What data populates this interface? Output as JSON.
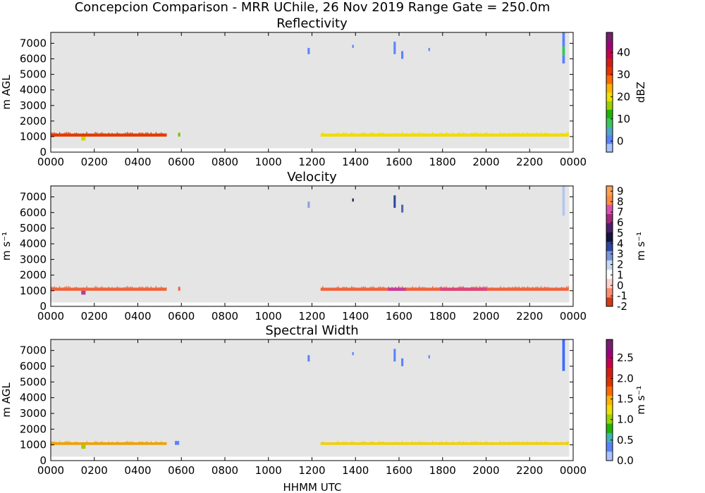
{
  "figure": {
    "title": "Concepcion Comparison - MRR UChile, 26 Nov 2019 Range Gate = 250.0m",
    "xlabel": "HHMM UTC"
  },
  "chart_data": [
    {
      "type": "heatmap",
      "title": "Reflectivity",
      "ylabel": "m AGL",
      "cbar_label": "dBZ",
      "cbar_range": [
        -5,
        49
      ],
      "cbar_ticks": [
        "0",
        "10",
        "20",
        "30",
        "40"
      ],
      "cbar_tick_values": [
        0,
        10,
        20,
        30,
        40
      ],
      "cbar_colors": [
        "#a8c4ff",
        "#5a82ff",
        "#4fa8c8",
        "#3cc85a",
        "#1fb400",
        "#9ad200",
        "#f0e000",
        "#ffb400",
        "#ff6a00",
        "#e83200",
        "#d21e14",
        "#c8004b",
        "#a0007a",
        "#781e6e"
      ],
      "xlim": [
        0,
        24
      ],
      "ylim": [
        0,
        7700
      ],
      "x_ticks": [
        "0000",
        "0200",
        "0400",
        "0600",
        "0800",
        "1000",
        "1200",
        "1400",
        "1600",
        "1800",
        "2000",
        "2200",
        "0000"
      ],
      "x_tick_values": [
        0,
        2,
        4,
        6,
        8,
        10,
        12,
        14,
        16,
        18,
        20,
        22,
        24
      ],
      "y_ticks": [
        "0",
        "1000",
        "2000",
        "3000",
        "4000",
        "5000",
        "6000",
        "7000"
      ],
      "y_tick_values": [
        0,
        1000,
        2000,
        3000,
        4000,
        5000,
        6000,
        7000
      ],
      "background": "#e5e5e5",
      "coverage": [
        [
          0,
          23.82,
          250,
          7700
        ]
      ],
      "segments": [
        {
          "x": [
            0.0,
            5.3
          ],
          "y": [
            1000,
            1300
          ],
          "color": "#e03c00"
        },
        {
          "x": [
            1.4,
            1.6
          ],
          "y": [
            750,
            1000
          ],
          "color": "#c8dc00"
        },
        {
          "x": [
            5.85,
            5.95
          ],
          "y": [
            1000,
            1250
          ],
          "color": "#6cc800"
        },
        {
          "x": [
            12.4,
            23.8
          ],
          "y": [
            1000,
            1300
          ],
          "color": "#f0dc00"
        },
        {
          "x": [
            11.8,
            11.9
          ],
          "y": [
            6300,
            6700
          ],
          "color": "#5a82ff"
        },
        {
          "x": [
            13.85,
            13.92
          ],
          "y": [
            6700,
            6900
          ],
          "color": "#5a82ff"
        },
        {
          "x": [
            15.75,
            15.85
          ],
          "y": [
            6300,
            7100
          ],
          "color": "#5a82ff"
        },
        {
          "x": [
            16.1,
            16.2
          ],
          "y": [
            6000,
            6500
          ],
          "color": "#5a82ff"
        },
        {
          "x": [
            17.35,
            17.42
          ],
          "y": [
            6500,
            6700
          ],
          "color": "#5a82ff"
        },
        {
          "x": [
            23.5,
            23.62
          ],
          "y": [
            5700,
            7700
          ],
          "color": "#5a82ff"
        },
        {
          "x": [
            23.5,
            23.62
          ],
          "y": [
            6200,
            6800
          ],
          "color": "#3cc85a"
        }
      ]
    },
    {
      "type": "heatmap",
      "title": "Velocity",
      "ylabel": "m s⁻¹",
      "cbar_label": "m s⁻¹",
      "cbar_range": [
        -2,
        9.5
      ],
      "cbar_ticks": [
        "-2",
        "-1",
        "0",
        "1",
        "2",
        "3",
        "4",
        "5",
        "6",
        "7",
        "8",
        "9"
      ],
      "cbar_tick_values": [
        -2,
        -1,
        0,
        1,
        2,
        3,
        4,
        5,
        6,
        7,
        8,
        9
      ],
      "cbar_colors": [
        "#d23c14",
        "#ff8c6e",
        "#ffd2c8",
        "#ffffff",
        "#c8d7f5",
        "#7896dc",
        "#2d46a0",
        "#14143c",
        "#4b1e6e",
        "#a0287d",
        "#dc50b4",
        "#ff8c3c",
        "#ffa050"
      ],
      "xlim": [
        0,
        24
      ],
      "ylim": [
        0,
        7700
      ],
      "x_ticks": [
        "0000",
        "0200",
        "0400",
        "0600",
        "0800",
        "1000",
        "1200",
        "1400",
        "1600",
        "1800",
        "2000",
        "2200",
        "0000"
      ],
      "x_tick_values": [
        0,
        2,
        4,
        6,
        8,
        10,
        12,
        14,
        16,
        18,
        20,
        22,
        24
      ],
      "y_ticks": [
        "0",
        "1000",
        "2000",
        "3000",
        "4000",
        "5000",
        "6000",
        "7000"
      ],
      "y_tick_values": [
        0,
        1000,
        2000,
        3000,
        4000,
        5000,
        6000,
        7000
      ],
      "background": "#e5e5e5",
      "coverage": [
        [
          0,
          23.82,
          250,
          7700
        ]
      ],
      "segments": [
        {
          "x": [
            0.0,
            5.3
          ],
          "y": [
            1000,
            1300
          ],
          "color": "#f0643c"
        },
        {
          "x": [
            1.4,
            1.6
          ],
          "y": [
            750,
            1000
          ],
          "color": "#b43ca0"
        },
        {
          "x": [
            5.85,
            5.95
          ],
          "y": [
            1000,
            1250
          ],
          "color": "#f0643c"
        },
        {
          "x": [
            12.4,
            23.8
          ],
          "y": [
            1000,
            1300
          ],
          "color": "#f0643c"
        },
        {
          "x": [
            15.5,
            16.3
          ],
          "y": [
            1000,
            1300
          ],
          "color": "#c83c96"
        },
        {
          "x": [
            17.9,
            20.0
          ],
          "y": [
            1000,
            1300
          ],
          "color": "#dc4678"
        },
        {
          "x": [
            11.8,
            11.9
          ],
          "y": [
            6300,
            6700
          ],
          "color": "#8ca0dc"
        },
        {
          "x": [
            13.85,
            13.92
          ],
          "y": [
            6700,
            6900
          ],
          "color": "#14143c"
        },
        {
          "x": [
            15.75,
            15.85
          ],
          "y": [
            6300,
            7100
          ],
          "color": "#2d46a0"
        },
        {
          "x": [
            16.1,
            16.2
          ],
          "y": [
            6000,
            6500
          ],
          "color": "#5064b4"
        },
        {
          "x": [
            17.35,
            17.42
          ],
          "y": [
            6500,
            6700
          ],
          "color": "#dce6f5"
        },
        {
          "x": [
            23.5,
            23.62
          ],
          "y": [
            5800,
            7700
          ],
          "color": "#b4c8eb"
        }
      ]
    },
    {
      "type": "heatmap",
      "title": "Spectral Width",
      "ylabel": "m AGL",
      "cbar_label": "m s⁻¹",
      "cbar_range": [
        0,
        2.95
      ],
      "cbar_ticks": [
        "0.0",
        "0.5",
        "1.0",
        "1.5",
        "2.0",
        "2.5"
      ],
      "cbar_tick_values": [
        0,
        0.5,
        1.0,
        1.5,
        2.0,
        2.5
      ],
      "cbar_colors": [
        "#a8c4ff",
        "#5a82ff",
        "#3cb4b4",
        "#1fb400",
        "#9ad200",
        "#f0e000",
        "#ffb400",
        "#ff6a00",
        "#e03200",
        "#d21e14",
        "#c8004b",
        "#a0007a",
        "#781e6e"
      ],
      "xlim": [
        0,
        24
      ],
      "ylim": [
        0,
        7700
      ],
      "x_ticks": [
        "0000",
        "0200",
        "0400",
        "0600",
        "0800",
        "1000",
        "1200",
        "1400",
        "1600",
        "1800",
        "2000",
        "2200",
        "0000"
      ],
      "x_tick_values": [
        0,
        2,
        4,
        6,
        8,
        10,
        12,
        14,
        16,
        18,
        20,
        22,
        24
      ],
      "y_ticks": [
        "0",
        "1000",
        "2000",
        "3000",
        "4000",
        "5000",
        "6000",
        "7000"
      ],
      "y_tick_values": [
        0,
        1000,
        2000,
        3000,
        4000,
        5000,
        6000,
        7000
      ],
      "background": "#e5e5e5",
      "coverage": [
        [
          0,
          23.82,
          250,
          7700
        ]
      ],
      "segments": [
        {
          "x": [
            0.0,
            5.3
          ],
          "y": [
            1000,
            1250
          ],
          "color": "#f0a000"
        },
        {
          "x": [
            1.4,
            1.6
          ],
          "y": [
            750,
            1000
          ],
          "color": "#9ad200"
        },
        {
          "x": [
            5.7,
            5.9
          ],
          "y": [
            1000,
            1250
          ],
          "color": "#5a82ff"
        },
        {
          "x": [
            12.4,
            23.8
          ],
          "y": [
            1000,
            1250
          ],
          "color": "#f0d200"
        },
        {
          "x": [
            11.8,
            11.9
          ],
          "y": [
            6300,
            6700
          ],
          "color": "#5a82ff"
        },
        {
          "x": [
            13.85,
            13.92
          ],
          "y": [
            6700,
            6900
          ],
          "color": "#5a82ff"
        },
        {
          "x": [
            15.75,
            15.85
          ],
          "y": [
            6300,
            7100
          ],
          "color": "#5a82ff"
        },
        {
          "x": [
            16.1,
            16.2
          ],
          "y": [
            6000,
            6500
          ],
          "color": "#5a82ff"
        },
        {
          "x": [
            17.35,
            17.42
          ],
          "y": [
            6500,
            6700
          ],
          "color": "#5a82ff"
        },
        {
          "x": [
            23.5,
            23.62
          ],
          "y": [
            5700,
            7700
          ],
          "color": "#3c6aff"
        }
      ]
    }
  ]
}
